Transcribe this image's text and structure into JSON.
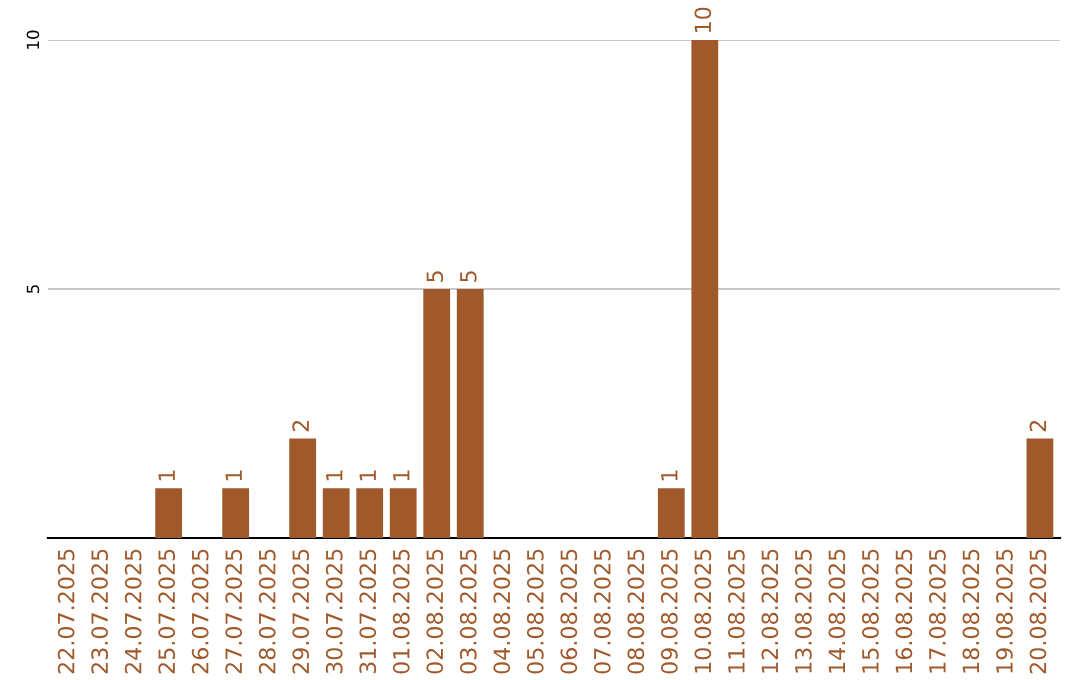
{
  "chart_data": {
    "type": "bar",
    "categories": [
      "22.07.2025",
      "23.07.2025",
      "24.07.2025",
      "25.07.2025",
      "26.07.2025",
      "27.07.2025",
      "28.07.2025",
      "29.07.2025",
      "30.07.2025",
      "31.07.2025",
      "01.08.2025",
      "02.08.2025",
      "03.08.2025",
      "04.08.2025",
      "05.08.2025",
      "06.08.2025",
      "07.08.2025",
      "08.08.2025",
      "09.08.2025",
      "10.08.2025",
      "11.08.2025",
      "12.08.2025",
      "13.08.2025",
      "14.08.2025",
      "15.08.2025",
      "16.08.2025",
      "17.08.2025",
      "18.08.2025",
      "19.08.2025",
      "20.08.2025"
    ],
    "values": [
      0,
      0,
      0,
      1,
      0,
      1,
      0,
      2,
      1,
      1,
      1,
      5,
      5,
      0,
      0,
      0,
      0,
      0,
      1,
      10,
      0,
      0,
      0,
      0,
      0,
      0,
      0,
      0,
      0,
      2
    ],
    "value_labels": [
      null,
      null,
      null,
      "1",
      null,
      "1",
      null,
      "2",
      "1",
      "1",
      "1",
      "5",
      "5",
      null,
      null,
      null,
      null,
      null,
      "1",
      "10",
      null,
      null,
      null,
      null,
      null,
      null,
      null,
      null,
      null,
      "2"
    ],
    "color": "#a0592a",
    "ylim": [
      0,
      10
    ],
    "yticks": [
      5,
      10
    ],
    "grid": "y"
  }
}
